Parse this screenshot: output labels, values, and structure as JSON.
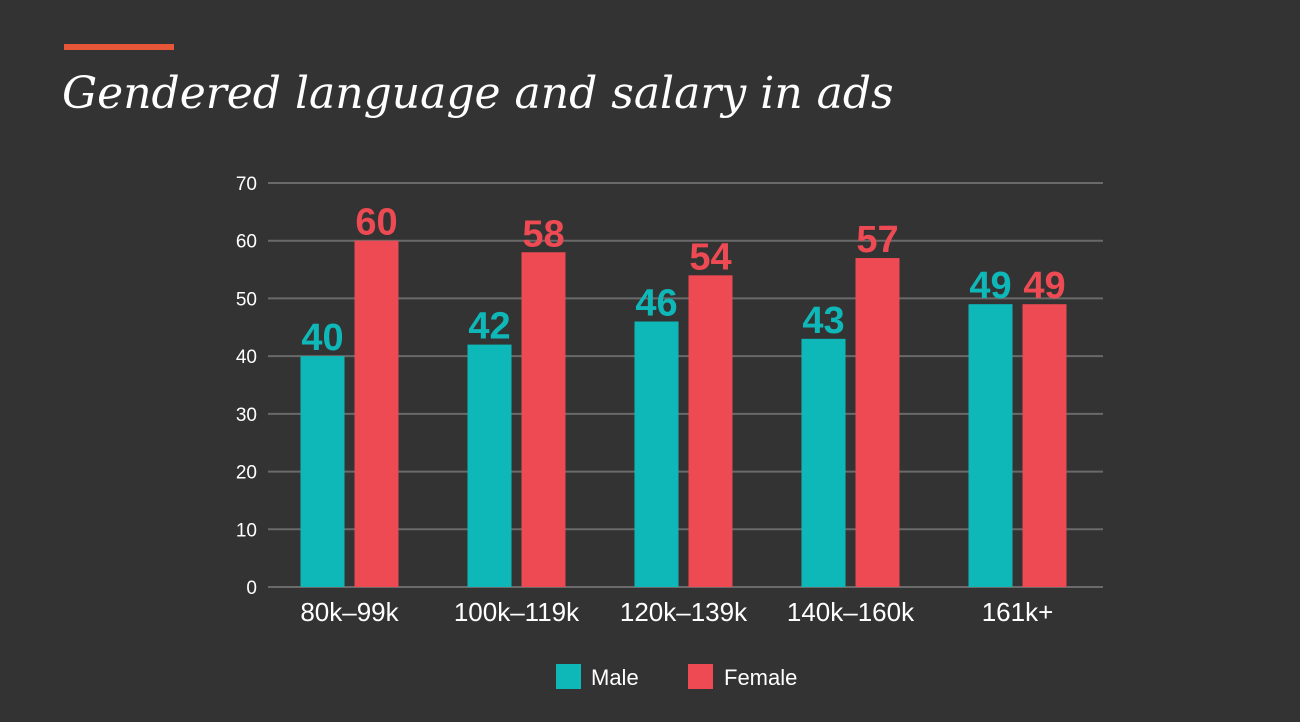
{
  "header": {
    "title": "Gendered language and salary in ads"
  },
  "colors": {
    "background": "#333333",
    "accent": "#e8563a",
    "grid": "#6a6a6a"
  },
  "chart_data": {
    "type": "bar",
    "title": "Gendered language and salary in ads",
    "categories": [
      "80k–99k",
      "100k–119k",
      "120k–139k",
      "140k–160k",
      "161k+"
    ],
    "series": [
      {
        "name": "Male",
        "values": [
          40,
          42,
          46,
          43,
          49
        ],
        "color": "#0fb8b8"
      },
      {
        "name": "Female",
        "values": [
          60,
          58,
          54,
          57,
          49
        ],
        "color": "#ee4a53"
      }
    ],
    "ylim": [
      0,
      70
    ],
    "yticks": [
      0,
      10,
      20,
      30,
      40,
      50,
      60,
      70
    ],
    "grid": true,
    "legend": "bottom-center",
    "data_labels": true
  }
}
